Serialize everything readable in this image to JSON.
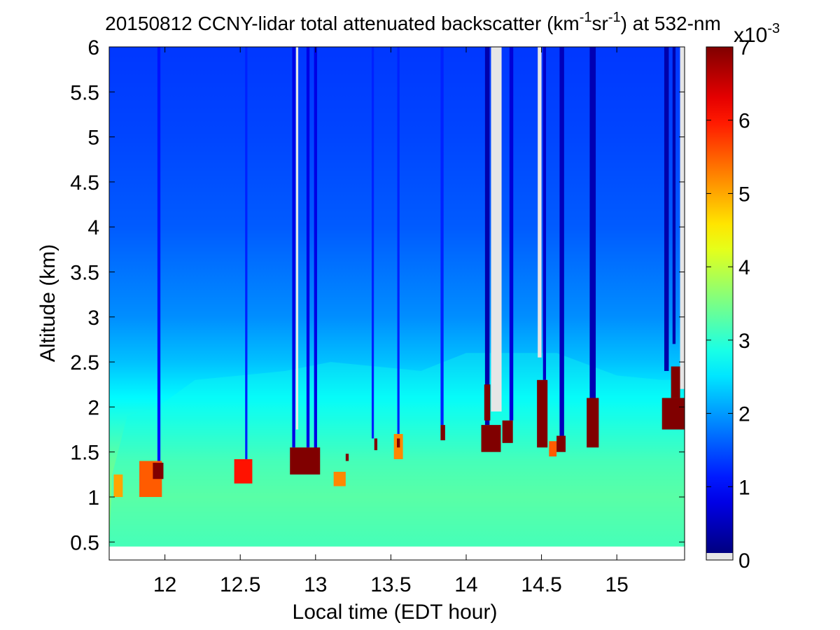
{
  "chart_data": {
    "type": "heatmap",
    "title": {
      "prefix": "20150812 CCNY-lidar total attenuated backscatter (km",
      "sup1": "-1",
      "mid": "sr",
      "sup2": "-1",
      "suffix": ") at 532-nm"
    },
    "xlabel": "Local time (EDT hour)",
    "ylabel": "Altitude (km)",
    "xlim": [
      11.63,
      15.45
    ],
    "ylim": [
      0.3,
      6.0
    ],
    "xticks": [
      12,
      12.5,
      13,
      13.5,
      14,
      14.5,
      15
    ],
    "xtick_labels": [
      "12",
      "12.5",
      "13",
      "13.5",
      "14",
      "14.5",
      "15"
    ],
    "yticks": [
      0.5,
      1,
      1.5,
      2,
      2.5,
      3,
      3.5,
      4,
      4.5,
      5,
      5.5,
      6
    ],
    "ytick_labels": [
      "0.5",
      "1",
      "1.5",
      "2",
      "2.5",
      "3",
      "3.5",
      "4",
      "4.5",
      "5",
      "5.5",
      "6"
    ],
    "data_bottom_km": 0.45,
    "colorbar": {
      "range": [
        0,
        7
      ],
      "ticks": [
        0,
        1,
        2,
        3,
        4,
        5,
        6,
        7
      ],
      "tick_labels": [
        "0",
        "1",
        "2",
        "3",
        "4",
        "5",
        "6",
        "7"
      ],
      "scale_base": "x10",
      "scale_exp": "-3",
      "colormap": "jet"
    },
    "grid": false,
    "colors": {
      "nodata": "#e6e6e6",
      "blue_profile": "#1e5af5"
    },
    "boundary_layer_top_km": [
      {
        "time": 11.65,
        "alt": 1.25
      },
      {
        "time": 11.75,
        "alt": 1.9
      },
      {
        "time": 11.95,
        "alt": 2.0
      },
      {
        "time": 12.2,
        "alt": 2.3
      },
      {
        "time": 12.5,
        "alt": 2.35
      },
      {
        "time": 12.8,
        "alt": 2.4
      },
      {
        "time": 13.1,
        "alt": 2.5
      },
      {
        "time": 13.4,
        "alt": 2.45
      },
      {
        "time": 13.7,
        "alt": 2.4
      },
      {
        "time": 14.0,
        "alt": 2.6
      },
      {
        "time": 14.3,
        "alt": 2.6
      },
      {
        "time": 14.6,
        "alt": 2.6
      },
      {
        "time": 15.0,
        "alt": 2.35
      },
      {
        "time": 15.3,
        "alt": 2.3
      },
      {
        "time": 15.45,
        "alt": 2.3
      }
    ],
    "cloud_patches": [
      {
        "t0": 11.66,
        "t1": 11.72,
        "z0": 1.0,
        "z1": 1.25,
        "value": 5.0
      },
      {
        "t0": 11.83,
        "t1": 11.98,
        "z0": 1.0,
        "z1": 1.4,
        "value": 5.5
      },
      {
        "t0": 11.92,
        "t1": 11.99,
        "z0": 1.2,
        "z1": 1.38,
        "value": 7.0
      },
      {
        "t0": 12.46,
        "t1": 12.58,
        "z0": 1.15,
        "z1": 1.42,
        "value": 6.0
      },
      {
        "t0": 12.83,
        "t1": 13.03,
        "z0": 1.25,
        "z1": 1.55,
        "value": 7.0
      },
      {
        "t0": 13.12,
        "t1": 13.2,
        "z0": 1.12,
        "z1": 1.28,
        "value": 5.2
      },
      {
        "t0": 13.2,
        "t1": 13.22,
        "z0": 1.4,
        "z1": 1.48,
        "value": 7.0
      },
      {
        "t0": 13.39,
        "t1": 13.41,
        "z0": 1.52,
        "z1": 1.65,
        "value": 7.0
      },
      {
        "t0": 13.52,
        "t1": 13.58,
        "z0": 1.42,
        "z1": 1.7,
        "value": 5.2
      },
      {
        "t0": 13.54,
        "t1": 13.56,
        "z0": 1.55,
        "z1": 1.65,
        "value": 7.0
      },
      {
        "t0": 13.83,
        "t1": 13.86,
        "z0": 1.63,
        "z1": 1.8,
        "value": 7.0
      },
      {
        "t0": 14.1,
        "t1": 14.23,
        "z0": 1.5,
        "z1": 1.8,
        "value": 7.0
      },
      {
        "t0": 14.12,
        "t1": 14.16,
        "z0": 1.85,
        "z1": 2.25,
        "value": 7.0
      },
      {
        "t0": 14.24,
        "t1": 14.31,
        "z0": 1.6,
        "z1": 1.85,
        "value": 7.0
      },
      {
        "t0": 14.47,
        "t1": 14.54,
        "z0": 1.55,
        "z1": 2.3,
        "value": 7.0
      },
      {
        "t0": 14.55,
        "t1": 14.6,
        "z0": 1.45,
        "z1": 1.62,
        "value": 5.5
      },
      {
        "t0": 14.6,
        "t1": 14.66,
        "z0": 1.5,
        "z1": 1.68,
        "value": 7.0
      },
      {
        "t0": 14.8,
        "t1": 14.88,
        "z0": 1.55,
        "z1": 2.1,
        "value": 7.0
      },
      {
        "t0": 15.3,
        "t1": 15.45,
        "z0": 1.75,
        "z1": 2.1,
        "value": 7.0
      },
      {
        "t0": 15.36,
        "t1": 15.42,
        "z0": 2.1,
        "z1": 2.45,
        "value": 7.0
      }
    ],
    "vertical_profiles": [
      {
        "time": 11.96,
        "width": 0.02,
        "value": 1.0,
        "z0": 1.38
      },
      {
        "time": 12.54,
        "width": 0.015,
        "value": 1.1,
        "z0": 1.42
      },
      {
        "time": 12.855,
        "width": 0.02,
        "value": 0.7,
        "z0": 1.55
      },
      {
        "time": 12.95,
        "width": 0.02,
        "value": 0.7,
        "z0": 1.55
      },
      {
        "time": 13.0,
        "width": 0.02,
        "value": 0.7,
        "z0": 1.5
      },
      {
        "time": 13.38,
        "width": 0.015,
        "value": 1.1,
        "z0": 1.65
      },
      {
        "time": 13.55,
        "width": 0.015,
        "value": 1.1,
        "z0": 1.7
      },
      {
        "time": 13.84,
        "width": 0.02,
        "value": 1.1,
        "z0": 1.8
      },
      {
        "time": 14.14,
        "width": 0.03,
        "value": 0.3,
        "z0": 1.8
      },
      {
        "time": 14.3,
        "width": 0.025,
        "value": 0.6,
        "z0": 1.85
      },
      {
        "time": 14.52,
        "width": 0.02,
        "value": 0.5,
        "z0": 2.3
      },
      {
        "time": 14.635,
        "width": 0.03,
        "value": 0.4,
        "z0": 1.68
      },
      {
        "time": 14.84,
        "width": 0.04,
        "value": 0.35,
        "z0": 2.1
      },
      {
        "time": 15.33,
        "width": 0.03,
        "value": 0.3,
        "z0": 2.4
      },
      {
        "time": 15.38,
        "width": 0.02,
        "value": 0.3,
        "z0": 2.7
      }
    ],
    "nodata_columns": [
      {
        "t0": 12.87,
        "t1": 12.885,
        "z0": 1.75
      },
      {
        "t0": 14.165,
        "t1": 14.235,
        "z0": 1.95
      },
      {
        "t0": 14.475,
        "t1": 14.5,
        "z0": 2.55
      },
      {
        "t0": 15.42,
        "t1": 15.455,
        "z0": 2.2
      }
    ]
  }
}
